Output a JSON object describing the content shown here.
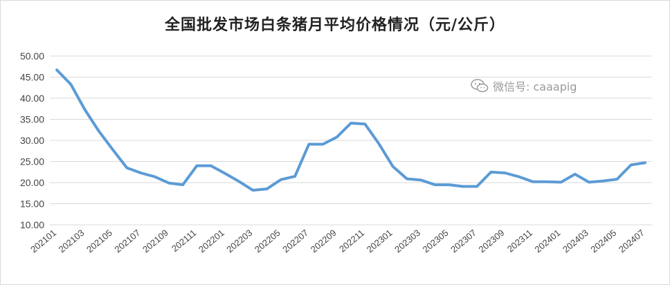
{
  "chart_data": {
    "type": "line",
    "title": "全国批发市场白条猪月平均价格情况（元/公斤）",
    "watermark": "微信号: caaapig",
    "ylim": [
      10,
      50
    ],
    "yticks": [
      "50.00",
      "45.00",
      "40.00",
      "35.00",
      "30.00",
      "25.00",
      "20.00",
      "15.00",
      "10.00"
    ],
    "xtick_labels": [
      "202101",
      "202103",
      "202105",
      "202107",
      "202109",
      "202111",
      "202201",
      "202203",
      "202205",
      "202207",
      "202209",
      "202211",
      "202301",
      "202303",
      "202305",
      "202307",
      "202309",
      "202311",
      "202401",
      "202403",
      "202405",
      "202407"
    ],
    "x": [
      "202101",
      "202102",
      "202103",
      "202104",
      "202105",
      "202106",
      "202107",
      "202108",
      "202109",
      "202110",
      "202111",
      "202112",
      "202201",
      "202202",
      "202203",
      "202204",
      "202205",
      "202206",
      "202207",
      "202208",
      "202209",
      "202210",
      "202211",
      "202212",
      "202301",
      "202302",
      "202303",
      "202304",
      "202305",
      "202306",
      "202307",
      "202308",
      "202309",
      "202310",
      "202311",
      "202312",
      "202401",
      "202402",
      "202403",
      "202404",
      "202405",
      "202406",
      "202407"
    ],
    "series": [
      {
        "values": [
          46.7,
          43.3,
          37.3,
          32.2,
          27.8,
          23.5,
          22.3,
          21.4,
          19.9,
          19.5,
          24.0,
          24.0,
          22.2,
          20.3,
          18.2,
          18.5,
          20.7,
          21.5,
          29.1,
          29.1,
          30.8,
          34.1,
          33.9,
          29.2,
          23.8,
          20.9,
          20.6,
          19.5,
          19.5,
          19.1,
          19.1,
          22.5,
          22.3,
          21.4,
          20.2,
          20.2,
          20.1,
          22.0,
          20.1,
          20.4,
          20.8,
          24.2,
          24.7
        ],
        "color": "#5b9bd5"
      }
    ],
    "grid": true,
    "legend": "none"
  }
}
